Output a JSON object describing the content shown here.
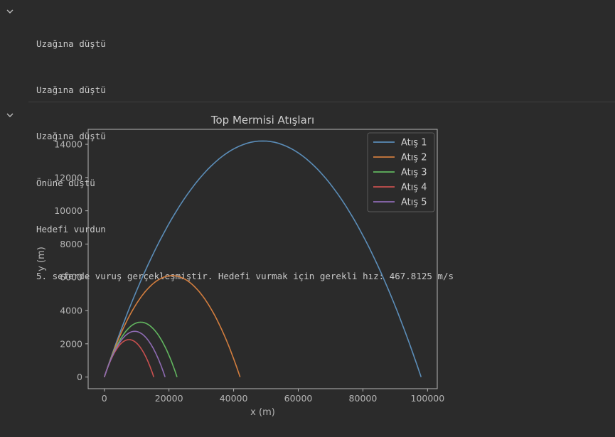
{
  "output": {
    "lines": [
      "Uzağına düştü",
      "Uzağına düştü",
      "Uzağına düştü",
      "Önüne düştü",
      "Hedefi vurdun",
      "5. seferde vuruş gerçekleşmiştir. Hedefi vurmak için gerekli hız: 467.8125 m/s"
    ]
  },
  "icons": {
    "collapse_output": "chevron-down-icon",
    "collapse_plot": "chevron-down-icon"
  },
  "colors": {
    "background": "#2b2b2b",
    "text": "#c9c9c9",
    "axis": "#b5b5b5"
  },
  "chart_data": {
    "type": "line",
    "title": "Top Mermisi Atışları",
    "xlabel": "x (m)",
    "ylabel": "y (m)",
    "xlim": [
      -5000,
      103000
    ],
    "ylim": [
      -700,
      14900
    ],
    "xticks": [
      0,
      20000,
      40000,
      60000,
      80000,
      100000
    ],
    "yticks": [
      0,
      2000,
      4000,
      6000,
      8000,
      10000,
      12000,
      14000
    ],
    "grid": false,
    "legend_position": "top-right",
    "series": [
      {
        "name": "Atış 1",
        "color": "#5b8db8",
        "range": 98000,
        "peak": 14200
      },
      {
        "name": "Atış 2",
        "color": "#d27d3e",
        "range": 42000,
        "peak": 6100
      },
      {
        "name": "Atış 3",
        "color": "#62b65f",
        "range": 22500,
        "peak": 3300
      },
      {
        "name": "Atış 4",
        "color": "#c9504f",
        "range": 15300,
        "peak": 2250
      },
      {
        "name": "Atış 5",
        "color": "#8e6bb3",
        "range": 18800,
        "peak": 2750
      }
    ]
  }
}
